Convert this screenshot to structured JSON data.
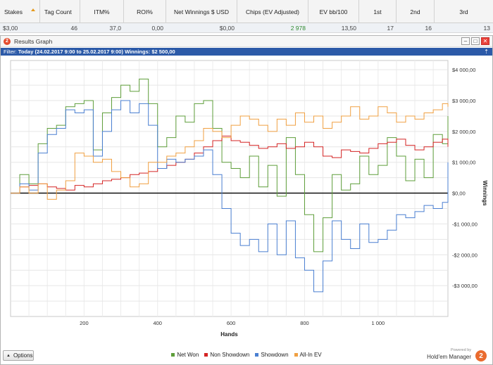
{
  "stats": {
    "headers": [
      "Stakes",
      "Tag Count",
      "ITM%",
      "ROI%",
      "Net Winnings $ USD",
      "Chips (EV Adjusted)",
      "EV bb/100",
      "1st",
      "2nd",
      "3rd"
    ],
    "values": [
      "$3,00",
      "46",
      "37,0",
      "0,00",
      "$0,00",
      "2 978",
      "13,50",
      "17",
      "16",
      "13"
    ]
  },
  "window": {
    "title": "Results Graph",
    "app_icon_letter": "2",
    "btn_min": "–",
    "btn_max": "□",
    "btn_close": "✕"
  },
  "filter": {
    "label": "Filter:",
    "text": "Today (24.02.2017 9:00 to 25.02.2017 9:00)",
    "winnings": "Winnings: $2 500,00",
    "pin_icon": "pin-icon"
  },
  "chart_data": {
    "type": "line",
    "xlabel": "Hands",
    "ylabel": "Winnings",
    "xlim": [
      0,
      1190
    ],
    "ylim": [
      -4000,
      4300
    ],
    "x_ticks": [
      200,
      400,
      600,
      800,
      1000
    ],
    "x_tick_labels": [
      "200",
      "400",
      "600",
      "800",
      "1 000"
    ],
    "y_ticks": [
      4000,
      3000,
      2000,
      1000,
      0,
      -1000,
      -2000,
      -3000
    ],
    "y_tick_labels": [
      "$4 000,00",
      "$3 000,00",
      "$2 000,00",
      "$1 000,00",
      "$0,00",
      "-$1 000,00",
      "-$2 000,00",
      "-$3 000,00"
    ],
    "grid": true,
    "legend_position": "bottom",
    "series": [
      {
        "name": "Net Won",
        "color": "#5e9e3a",
        "x": [
          0,
          25,
          50,
          75,
          100,
          125,
          150,
          175,
          200,
          225,
          250,
          275,
          300,
          325,
          350,
          375,
          400,
          425,
          450,
          475,
          500,
          525,
          550,
          575,
          600,
          625,
          650,
          675,
          700,
          725,
          750,
          775,
          800,
          825,
          850,
          875,
          900,
          925,
          950,
          975,
          1000,
          1025,
          1050,
          1075,
          1100,
          1125,
          1150,
          1175,
          1190
        ],
        "values": [
          0,
          600,
          300,
          1600,
          2100,
          2200,
          2800,
          2900,
          3000,
          1400,
          2600,
          3100,
          3500,
          3300,
          3700,
          2900,
          1500,
          1800,
          2500,
          2300,
          2900,
          3000,
          2100,
          1000,
          800,
          500,
          1200,
          200,
          900,
          -100,
          1800,
          600,
          -700,
          -1900,
          -800,
          600,
          100,
          300,
          1200,
          600,
          900,
          1800,
          1200,
          400,
          1100,
          500,
          1900,
          1600,
          2500
        ]
      },
      {
        "name": "Non Showdown",
        "color": "#d42424",
        "x": [
          0,
          25,
          50,
          75,
          100,
          125,
          150,
          175,
          200,
          225,
          250,
          275,
          300,
          325,
          350,
          375,
          400,
          425,
          450,
          475,
          500,
          525,
          550,
          575,
          600,
          625,
          650,
          675,
          700,
          725,
          750,
          775,
          800,
          825,
          850,
          875,
          900,
          925,
          950,
          975,
          1000,
          1025,
          1050,
          1075,
          1100,
          1125,
          1150,
          1175,
          1190
        ],
        "values": [
          0,
          200,
          250,
          300,
          200,
          150,
          100,
          250,
          200,
          300,
          400,
          450,
          500,
          600,
          650,
          700,
          800,
          900,
          1000,
          1100,
          1300,
          1500,
          1700,
          1850,
          1700,
          1650,
          1550,
          1450,
          1500,
          1600,
          1450,
          1500,
          1650,
          1500,
          1200,
          1150,
          1400,
          1350,
          1300,
          1450,
          1600,
          1650,
          1750,
          1550,
          1400,
          1500,
          1650,
          1750,
          1500
        ]
      },
      {
        "name": "Showdown",
        "color": "#4a7fd1",
        "x": [
          0,
          25,
          50,
          75,
          100,
          125,
          150,
          175,
          200,
          225,
          250,
          275,
          300,
          325,
          350,
          375,
          400,
          425,
          450,
          475,
          500,
          525,
          550,
          575,
          600,
          625,
          650,
          675,
          700,
          725,
          750,
          775,
          800,
          825,
          850,
          875,
          900,
          925,
          950,
          975,
          1000,
          1025,
          1050,
          1075,
          1100,
          1125,
          1150,
          1175,
          1190
        ],
        "values": [
          0,
          300,
          100,
          1300,
          1900,
          2100,
          2700,
          2600,
          2700,
          1200,
          2000,
          2700,
          3000,
          2600,
          2900,
          2200,
          800,
          1100,
          1000,
          1100,
          1200,
          1400,
          600,
          -500,
          -1300,
          -1700,
          -1500,
          -1900,
          -1000,
          -2000,
          -900,
          -2100,
          -2500,
          -3200,
          -2200,
          -900,
          -1500,
          -1800,
          -1000,
          -1600,
          -1500,
          -1200,
          -700,
          -800,
          -600,
          -400,
          -500,
          -300,
          1000
        ]
      },
      {
        "name": "All-In EV",
        "color": "#f0a042",
        "x": [
          0,
          25,
          50,
          75,
          100,
          125,
          150,
          175,
          200,
          225,
          250,
          275,
          300,
          325,
          350,
          375,
          400,
          425,
          450,
          475,
          500,
          525,
          550,
          575,
          600,
          625,
          650,
          675,
          700,
          725,
          750,
          775,
          800,
          825,
          850,
          875,
          900,
          925,
          950,
          975,
          1000,
          1025,
          1050,
          1075,
          1100,
          1125,
          1150,
          1175,
          1190
        ],
        "values": [
          0,
          200,
          0,
          300,
          -200,
          100,
          400,
          1300,
          1200,
          1000,
          1100,
          700,
          500,
          200,
          300,
          1000,
          1000,
          1200,
          1300,
          1500,
          1700,
          2100,
          2000,
          1800,
          2200,
          2500,
          2400,
          2200,
          2000,
          2400,
          2200,
          2600,
          2300,
          2500,
          2100,
          2300,
          2500,
          2800,
          2400,
          2500,
          2800,
          2600,
          2300,
          2500,
          2400,
          2600,
          2700,
          2900,
          2800
        ]
      }
    ]
  },
  "bottom": {
    "options_label": "Options",
    "powered_by": "Powered by",
    "brand": "Hold'em Manager",
    "brand_logo": "2"
  }
}
